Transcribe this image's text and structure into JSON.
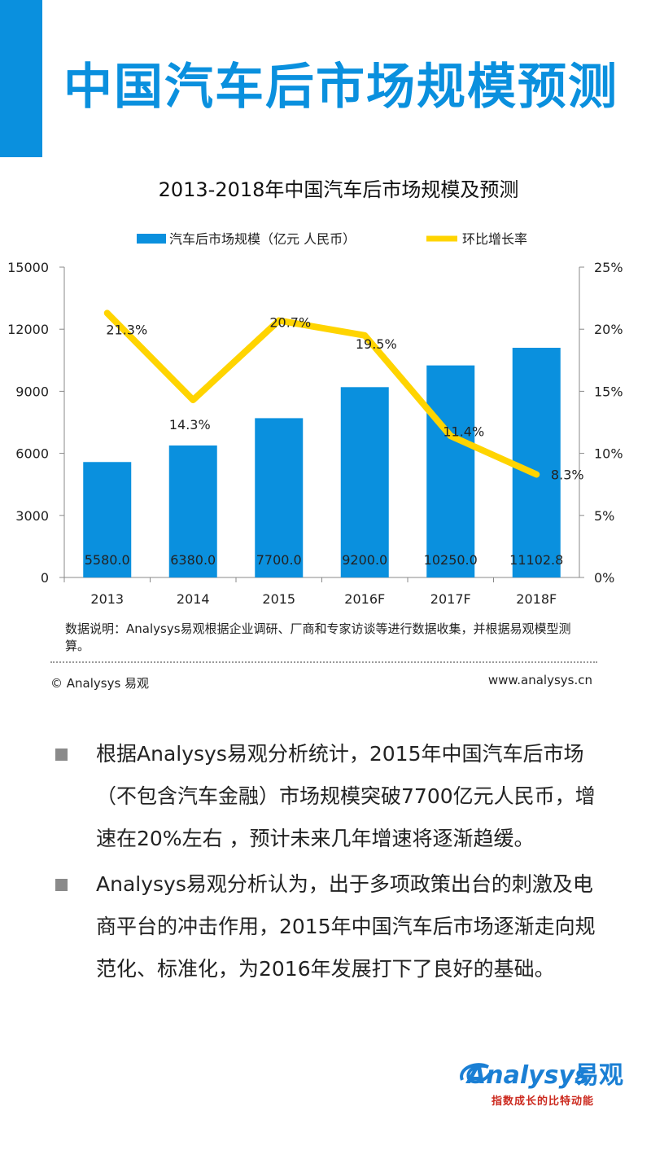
{
  "header": {
    "title": "中国汽车后市场规模预测"
  },
  "colors": {
    "accent": "#0a90de",
    "bar": "#0a90de",
    "line": "#ffd400"
  },
  "chart_data": {
    "type": "bar",
    "title": "2013-2018年中国汽车后市场规模及预测",
    "legend_position": "top",
    "categories": [
      "2013",
      "2014",
      "2015",
      "2016F",
      "2017F",
      "2018F"
    ],
    "series": [
      {
        "name": "汽车后市场规模（亿元 人民币）",
        "type": "bar",
        "axis": "left",
        "values": [
          5580.0,
          6380.0,
          7700.0,
          9200.0,
          10250.0,
          11102.8
        ],
        "labels": [
          "5580.0",
          "6380.0",
          "7700.0",
          "9200.0",
          "10250.0",
          "11102.8"
        ]
      },
      {
        "name": "环比增长率",
        "type": "line",
        "axis": "right",
        "values": [
          21.3,
          14.3,
          20.7,
          19.5,
          11.4,
          8.3
        ],
        "labels": [
          "21.3%",
          "14.3%",
          "20.7%",
          "19.5%",
          "11.4%",
          "8.3%"
        ]
      }
    ],
    "y_left": {
      "min": 0,
      "max": 15000,
      "ticks": [
        "0",
        "3000",
        "6000",
        "9000",
        "12000",
        "15000"
      ]
    },
    "y_right": {
      "min": 0,
      "max": 25,
      "ticks": [
        "0%",
        "5%",
        "10%",
        "15%",
        "20%",
        "25%"
      ]
    },
    "grid": false
  },
  "note": "数据说明：Analysys易观根据企业调研、厂商和专家访谈等进行数据收集，并根据易观模型测算。",
  "footer": {
    "copyright": "© Analysys 易观",
    "website": "www.analysys.cn"
  },
  "bullets": [
    "根据Analysys易观分析统计，2015年中国汽车后市场（不包含汽车金融）市场规模突破7700亿元人民币，增速在20%左右 ，预计未来几年增速将逐渐趋缓。",
    "Analysys易观分析认为，出于多项政策出台的刺激及电商平台的冲击作用，2015年中国汽车后市场逐渐走向规范化、标准化，为2016年发展打下了良好的基础。"
  ],
  "logo": {
    "word": "Analysys",
    "cn": "易观",
    "slogan": "指数成长的比特动能"
  }
}
